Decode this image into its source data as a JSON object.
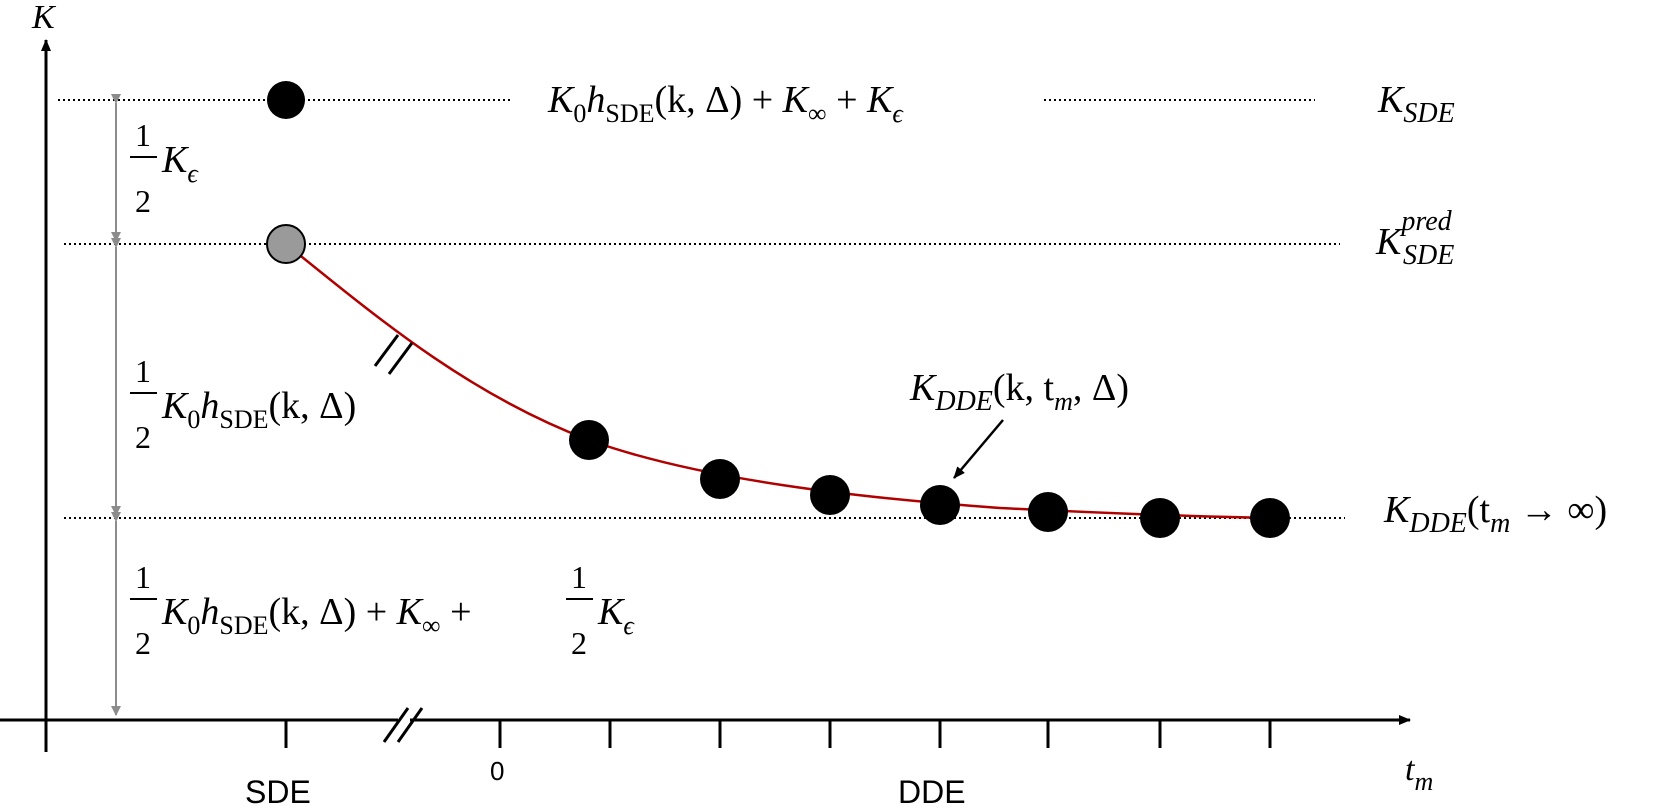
{
  "axes": {
    "y_label": "K",
    "x_label_main": "t",
    "x_label_sub": "m",
    "x_tick_zero": "0",
    "x_region_sde": "SDE",
    "x_region_dde": "DDE"
  },
  "levels": {
    "k_sde": {
      "main": "K",
      "sub": "SDE"
    },
    "k_sde_pred": {
      "main": "K",
      "sup": "pred",
      "sub": "SDE"
    },
    "k_dde_inf": {
      "main": "K",
      "sub": "DDE",
      "args": "(t",
      "args_sub": "m",
      "args_tail": " → ∞)"
    }
  },
  "annotations": {
    "top_formula": {
      "K": "K",
      "K_sub": "0",
      "h": "h",
      "h_sub": "SDE",
      "args": "(k, Δ) + ",
      "Kinf": "K",
      "Kinf_sub": "∞",
      "plus": " + ",
      "Keps": "K",
      "Keps_sub": "ϵ"
    },
    "curve_label": {
      "main": "K",
      "sub": "DDE",
      "args_a": "(k, t",
      "args_sub": "m",
      "args_b": ", Δ)"
    },
    "bracket_top": {
      "num": "1",
      "den": "2",
      "K": "K",
      "sub": "ϵ"
    },
    "bracket_middle": {
      "num": "1",
      "den": "2",
      "K": "K",
      "K_sub": "0",
      "h": "h",
      "h_sub": "SDE",
      "args": "(k, Δ)"
    },
    "bracket_bottom": {
      "num": "1",
      "den": "2",
      "K": "K",
      "K_sub": "0",
      "h": "h",
      "h_sub": "SDE",
      "args": "(k, Δ) + ",
      "Kinf": "K",
      "Kinf_sub": "∞",
      "plus": " + ",
      "num2": "1",
      "den2": "2",
      "Keps": "K",
      "Keps_sub": "ϵ"
    }
  },
  "colors": {
    "axis": "#000000",
    "curve": "#b00000",
    "point_fill": "#000000",
    "pred_point_fill": "#9a9a9a",
    "bracket": "#8c8c8c",
    "dotted": "#000000"
  }
}
